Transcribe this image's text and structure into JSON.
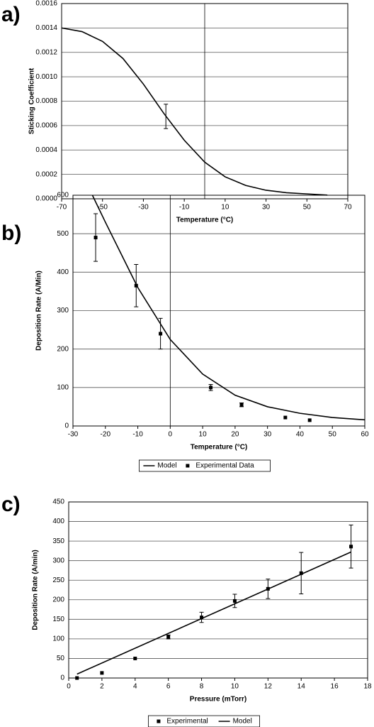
{
  "chart_data": [
    {
      "type": "line",
      "label": "a)",
      "y_label": "Sticking Coefficient",
      "x_label": "Temperature (°C)",
      "xlim": [
        -70,
        70
      ],
      "xticks": [
        -70,
        -50,
        -30,
        -10,
        10,
        30,
        50,
        70
      ],
      "ylim": [
        0,
        0.0016
      ],
      "yticks": [
        {
          "value": 0,
          "label": "0.0000"
        },
        {
          "value": 0.0002,
          "label": "0.0002"
        },
        {
          "value": 0.0004,
          "label": "0.0004"
        },
        {
          "value": 0.0006,
          "label": "0.0006"
        },
        {
          "value": 0.0008,
          "label": "0.0008"
        },
        {
          "value": 0.001,
          "label": "0.0010"
        },
        {
          "value": 0.0012,
          "label": "0.0012"
        },
        {
          "value": 0.0014,
          "label": "0.0014"
        },
        {
          "value": 0.0016,
          "label": "0.0016"
        }
      ],
      "grid": true,
      "reference_x": 0,
      "series": [
        {
          "mode": "line",
          "color": "#000000",
          "x": [
            -70,
            -60,
            -50,
            -40,
            -30,
            -20,
            -10,
            0,
            10,
            20,
            30,
            40,
            50,
            60
          ],
          "values": [
            0.0014,
            0.00137,
            0.00129,
            0.00115,
            0.00094,
            0.0007,
            0.00048,
            0.0003,
            0.00018,
            0.00011,
            7e-05,
            5e-05,
            4e-05,
            3e-05
          ]
        },
        {
          "mode": "errorbar",
          "color": "#000000",
          "x": [
            -19
          ],
          "values": [
            0.000675
          ],
          "errors": [
            0.0001
          ]
        }
      ]
    },
    {
      "type": "line",
      "label": "b)",
      "y_label": "Deposition Rate (A/Min)",
      "x_label": "Temperature (°C)",
      "xlim": [
        -30,
        60
      ],
      "xticks": [
        -30,
        -20,
        -10,
        0,
        10,
        20,
        30,
        40,
        50,
        60
      ],
      "ylim": [
        0,
        600
      ],
      "yticks": [
        0,
        100,
        200,
        300,
        400,
        500,
        600
      ],
      "grid": true,
      "reference_x": 0,
      "legend": "bottom",
      "series": [
        {
          "name": "Model",
          "mode": "line",
          "color": "#000000",
          "x": [
            -24,
            -20,
            -10,
            0,
            10,
            20,
            30,
            40,
            50,
            60
          ],
          "values": [
            600,
            530,
            360,
            225,
            135,
            80,
            50,
            33,
            22,
            16
          ]
        },
        {
          "name": "Experimental Data",
          "mode": "scatter",
          "color": "#000000",
          "x": [
            -23,
            -10.5,
            -3,
            12.5,
            22,
            35.5,
            43
          ],
          "values": [
            490,
            365,
            240,
            100,
            55,
            22,
            15
          ],
          "errors": [
            62,
            55,
            40,
            8,
            5,
            null,
            null
          ]
        }
      ]
    },
    {
      "type": "line",
      "label": "c)",
      "y_label": "Deposition Rate (A/min)",
      "x_label": "Pressure (mTorr)",
      "xlim": [
        0,
        18
      ],
      "xticks": [
        0,
        2,
        4,
        6,
        8,
        10,
        12,
        14,
        16,
        18
      ],
      "ylim": [
        0,
        450
      ],
      "yticks": [
        0,
        50,
        100,
        150,
        200,
        250,
        300,
        350,
        400,
        450
      ],
      "grid": true,
      "legend": "bottom",
      "series": [
        {
          "name": "Experimental",
          "mode": "scatter",
          "color": "#000000",
          "x": [
            0.5,
            2,
            4,
            6,
            8,
            10,
            12,
            14,
            17
          ],
          "values": [
            0,
            13,
            50,
            105,
            155,
            197,
            228,
            268,
            336
          ],
          "errors": [
            null,
            null,
            null,
            5,
            13,
            17,
            25,
            53,
            55
          ]
        },
        {
          "name": "Model",
          "mode": "line",
          "color": "#000000",
          "x": [
            0.5,
            17
          ],
          "values": [
            10,
            322
          ]
        }
      ]
    }
  ]
}
